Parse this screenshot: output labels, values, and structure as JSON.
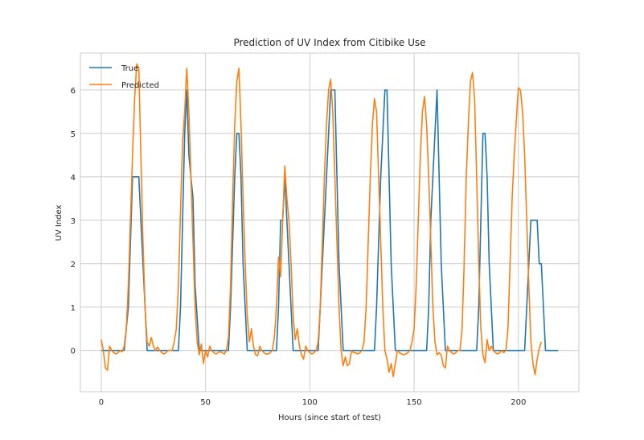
{
  "chart_data": {
    "type": "line",
    "title": "Prediction of UV Index from Citibike Use",
    "xlabel": "Hours (since start of test)",
    "ylabel": "UV Index",
    "xlim": [
      -10,
      229
    ],
    "ylim": [
      -0.95,
      6.85
    ],
    "xticks": [
      0,
      50,
      100,
      150,
      200
    ],
    "yticks": [
      0,
      1,
      2,
      3,
      4,
      5,
      6
    ],
    "grid": true,
    "legend_position": "upper-left",
    "series": [
      {
        "name": "True",
        "color": "#1f77b4",
        "points": [
          [
            0,
            0
          ],
          [
            11,
            0
          ],
          [
            13,
            1
          ],
          [
            15,
            4
          ],
          [
            18,
            4
          ],
          [
            20,
            2
          ],
          [
            22,
            0
          ],
          [
            37,
            0
          ],
          [
            38,
            1
          ],
          [
            40,
            5
          ],
          [
            41,
            6
          ],
          [
            42,
            4.5
          ],
          [
            44,
            3.5
          ],
          [
            45,
            1.5
          ],
          [
            47,
            0
          ],
          [
            61,
            0
          ],
          [
            62,
            1
          ],
          [
            64,
            4
          ],
          [
            65,
            5
          ],
          [
            66,
            5
          ],
          [
            67,
            4
          ],
          [
            68,
            2
          ],
          [
            70,
            0
          ],
          [
            84,
            0
          ],
          [
            85,
            1
          ],
          [
            86,
            3
          ],
          [
            87,
            3
          ],
          [
            88,
            4
          ],
          [
            89,
            3
          ],
          [
            90,
            2
          ],
          [
            91,
            1
          ],
          [
            92,
            0
          ],
          [
            104,
            0
          ],
          [
            105,
            1
          ],
          [
            107,
            3
          ],
          [
            109,
            5
          ],
          [
            110,
            6
          ],
          [
            112,
            6
          ],
          [
            113,
            4
          ],
          [
            114,
            2
          ],
          [
            116,
            0
          ],
          [
            131,
            0
          ],
          [
            132,
            1
          ],
          [
            134,
            4
          ],
          [
            136,
            6
          ],
          [
            137,
            6
          ],
          [
            138,
            4
          ],
          [
            139,
            2
          ],
          [
            141,
            0
          ],
          [
            156,
            0
          ],
          [
            157,
            1
          ],
          [
            158,
            3
          ],
          [
            160,
            5
          ],
          [
            161,
            6
          ],
          [
            162,
            4
          ],
          [
            163,
            2
          ],
          [
            165,
            0
          ],
          [
            180,
            0
          ],
          [
            181,
            1
          ],
          [
            182,
            3
          ],
          [
            183,
            5
          ],
          [
            184,
            5
          ],
          [
            185,
            4
          ],
          [
            186,
            2
          ],
          [
            188,
            0
          ],
          [
            203,
            0
          ],
          [
            204,
            1
          ],
          [
            206,
            3
          ],
          [
            209,
            3
          ],
          [
            210,
            2
          ],
          [
            211,
            2
          ],
          [
            212,
            1
          ],
          [
            213,
            0
          ],
          [
            219,
            0
          ]
        ]
      },
      {
        "name": "Predicted",
        "color": "#ff7f0e",
        "points": [
          [
            0,
            0.25
          ],
          [
            1,
            0
          ],
          [
            2,
            -0.4
          ],
          [
            3,
            -0.45
          ],
          [
            4,
            0.1
          ],
          [
            5,
            0
          ],
          [
            6,
            -0.05
          ],
          [
            7,
            -0.08
          ],
          [
            8,
            -0.05
          ],
          [
            9,
            0
          ],
          [
            10,
            -0.03
          ],
          [
            11,
            0.1
          ],
          [
            12,
            0.5
          ],
          [
            13,
            1.5
          ],
          [
            14,
            3
          ],
          [
            15,
            4.5
          ],
          [
            16,
            5.8
          ],
          [
            17,
            6.6
          ],
          [
            18,
            6.5
          ],
          [
            19,
            4.5
          ],
          [
            20,
            2.5
          ],
          [
            21,
            1
          ],
          [
            22,
            0.2
          ],
          [
            23,
            0.1
          ],
          [
            24,
            0.3
          ],
          [
            25,
            0.1
          ],
          [
            26,
            0
          ],
          [
            27,
            0.08
          ],
          [
            28,
            0
          ],
          [
            29,
            -0.05
          ],
          [
            30,
            -0.08
          ],
          [
            31,
            -0.05
          ],
          [
            32,
            0
          ],
          [
            33,
            0
          ],
          [
            34,
            0
          ],
          [
            35,
            0.2
          ],
          [
            36,
            0.5
          ],
          [
            37,
            1.5
          ],
          [
            38,
            3.2
          ],
          [
            39,
            4.8
          ],
          [
            40,
            5.5
          ],
          [
            41,
            6.5
          ],
          [
            42,
            5.5
          ],
          [
            43,
            4
          ],
          [
            44,
            2.5
          ],
          [
            45,
            1
          ],
          [
            46,
            0.2
          ],
          [
            47,
            -0.1
          ],
          [
            48,
            0.15
          ],
          [
            49,
            -0.3
          ],
          [
            50,
            0
          ],
          [
            51,
            -0.15
          ],
          [
            52,
            0.1
          ],
          [
            53,
            0
          ],
          [
            54,
            -0.05
          ],
          [
            55,
            -0.08
          ],
          [
            56,
            -0.05
          ],
          [
            57,
            -0.03
          ],
          [
            58,
            -0.05
          ],
          [
            59,
            -0.08
          ],
          [
            60,
            0
          ],
          [
            61,
            0.3
          ],
          [
            62,
            1.5
          ],
          [
            63,
            3.5
          ],
          [
            64,
            5.2
          ],
          [
            65,
            6.2
          ],
          [
            66,
            6.5
          ],
          [
            67,
            5.2
          ],
          [
            68,
            3.5
          ],
          [
            69,
            2
          ],
          [
            70,
            0.8
          ],
          [
            71,
            0.2
          ],
          [
            72,
            0.5
          ],
          [
            73,
            0.1
          ],
          [
            74,
            -0.1
          ],
          [
            75,
            -0.12
          ],
          [
            76,
            0.1
          ],
          [
            77,
            0
          ],
          [
            78,
            -0.05
          ],
          [
            79,
            -0.08
          ],
          [
            80,
            -0.08
          ],
          [
            81,
            -0.05
          ],
          [
            82,
            0
          ],
          [
            83,
            0.3
          ],
          [
            84,
            1
          ],
          [
            85,
            2.15
          ],
          [
            86,
            1.7
          ],
          [
            87,
            3
          ],
          [
            88,
            4.25
          ],
          [
            89,
            3.5
          ],
          [
            90,
            3
          ],
          [
            91,
            2
          ],
          [
            92,
            0.8
          ],
          [
            93,
            0.25
          ],
          [
            94,
            0.5
          ],
          [
            95,
            0.1
          ],
          [
            96,
            -0.1
          ],
          [
            97,
            -0.2
          ],
          [
            98,
            0.1
          ],
          [
            99,
            0
          ],
          [
            100,
            -0.05
          ],
          [
            101,
            -0.08
          ],
          [
            102,
            -0.05
          ],
          [
            103,
            0
          ],
          [
            104,
            0.2
          ],
          [
            105,
            1
          ],
          [
            106,
            2.5
          ],
          [
            107,
            4
          ],
          [
            108,
            5.2
          ],
          [
            109,
            6
          ],
          [
            110,
            6.25
          ],
          [
            111,
            5.5
          ],
          [
            112,
            4
          ],
          [
            113,
            2.5
          ],
          [
            114,
            1
          ],
          [
            115,
            0
          ],
          [
            116,
            -0.35
          ],
          [
            117,
            -0.15
          ],
          [
            118,
            -0.35
          ],
          [
            119,
            -0.3
          ],
          [
            120,
            0
          ],
          [
            121,
            -0.05
          ],
          [
            122,
            -0.05
          ],
          [
            123,
            -0.08
          ],
          [
            124,
            -0.05
          ],
          [
            125,
            0
          ],
          [
            126,
            0.2
          ],
          [
            127,
            1
          ],
          [
            128,
            2.5
          ],
          [
            129,
            4
          ],
          [
            130,
            5.2
          ],
          [
            131,
            5.8
          ],
          [
            132,
            5.5
          ],
          [
            133,
            4
          ],
          [
            134,
            2.5
          ],
          [
            135,
            1
          ],
          [
            136,
            0
          ],
          [
            137,
            -0.2
          ],
          [
            138,
            -0.5
          ],
          [
            139,
            -0.3
          ],
          [
            140,
            -0.6
          ],
          [
            141,
            -0.3
          ],
          [
            142,
            0
          ],
          [
            143,
            -0.05
          ],
          [
            144,
            -0.08
          ],
          [
            145,
            -0.1
          ],
          [
            146,
            -0.08
          ],
          [
            147,
            -0.05
          ],
          [
            148,
            0
          ],
          [
            149,
            0.2
          ],
          [
            150,
            0.5
          ],
          [
            151,
            1.5
          ],
          [
            152,
            3
          ],
          [
            153,
            4.5
          ],
          [
            154,
            5.5
          ],
          [
            155,
            5.85
          ],
          [
            156,
            5.2
          ],
          [
            157,
            4
          ],
          [
            158,
            2.5
          ],
          [
            159,
            1
          ],
          [
            160,
            0.2
          ],
          [
            161,
            -0.1
          ],
          [
            162,
            -0.05
          ],
          [
            163,
            -0.1
          ],
          [
            164,
            -0.35
          ],
          [
            165,
            -0.4
          ],
          [
            166,
            0.1
          ],
          [
            167,
            0
          ],
          [
            168,
            -0.05
          ],
          [
            169,
            -0.08
          ],
          [
            170,
            -0.05
          ],
          [
            171,
            0
          ],
          [
            172,
            0
          ],
          [
            173,
            0.5
          ],
          [
            174,
            2
          ],
          [
            175,
            4
          ],
          [
            176,
            5.2
          ],
          [
            177,
            6.2
          ],
          [
            178,
            6.4
          ],
          [
            179,
            5.8
          ],
          [
            180,
            4
          ],
          [
            181,
            2
          ],
          [
            182,
            0.5
          ],
          [
            183,
            -0.1
          ],
          [
            184,
            -0.28
          ],
          [
            185,
            0.25
          ],
          [
            186,
            0
          ],
          [
            187,
            0.1
          ],
          [
            188,
            0
          ],
          [
            189,
            -0.05
          ],
          [
            190,
            -0.08
          ],
          [
            191,
            -0.05
          ],
          [
            192,
            0
          ],
          [
            193,
            -0.05
          ],
          [
            194,
            0
          ],
          [
            195,
            0.5
          ],
          [
            196,
            2
          ],
          [
            197,
            3.5
          ],
          [
            198,
            4.5
          ],
          [
            199,
            5.3
          ],
          [
            200,
            6.05
          ],
          [
            201,
            6
          ],
          [
            202,
            5.5
          ],
          [
            203,
            4.5
          ],
          [
            204,
            3
          ],
          [
            205,
            1.5
          ],
          [
            206,
            0.2
          ],
          [
            207,
            -0.3
          ],
          [
            208,
            -0.56
          ],
          [
            209,
            -0.2
          ],
          [
            210,
            0.05
          ],
          [
            211,
            0.2
          ]
        ]
      }
    ]
  }
}
